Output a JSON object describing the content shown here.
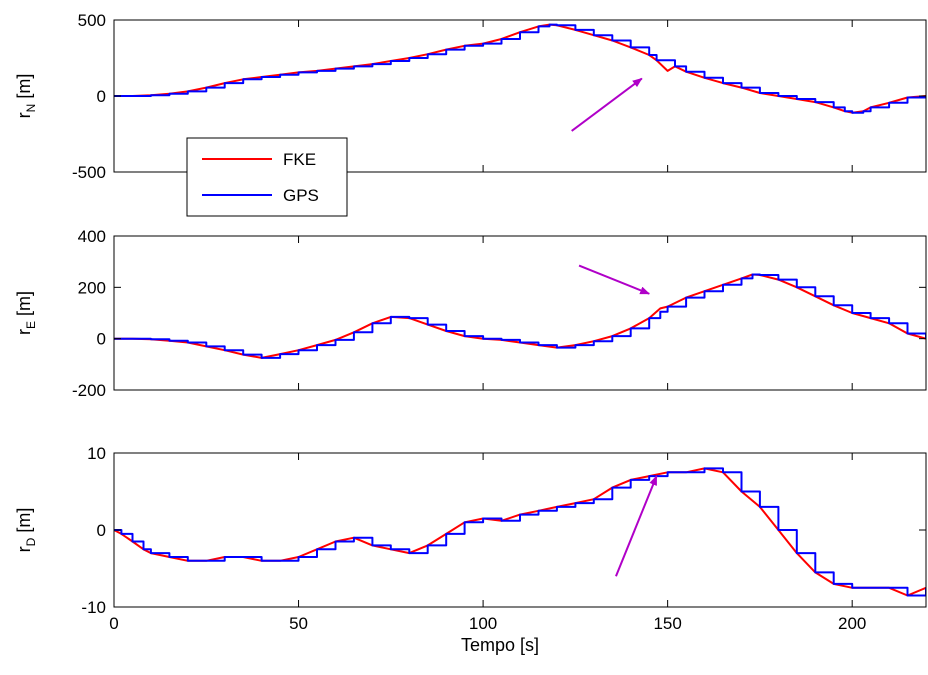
{
  "chart_data": [
    {
      "id": "rN",
      "type": "line",
      "ylabel": "r",
      "ylabel_subscript": "N",
      "ylabel_unit": "[m]",
      "xlim": [
        0,
        220
      ],
      "ylim": [
        -500,
        500
      ],
      "y_ticks": [
        "-500",
        "0",
        "500"
      ],
      "y_tick_values": [
        -500,
        0,
        500
      ],
      "x_ticks": [
        0,
        50,
        100,
        150,
        200
      ],
      "grid": false,
      "legend": {
        "placement": "bottom-left",
        "entries": [
          {
            "label": "FKE",
            "color": "#ff0000"
          },
          {
            "label": "GPS",
            "color": "#0000ff"
          }
        ]
      },
      "annotation": {
        "type": "arrow",
        "color": "#b000c8",
        "from": [
          124,
          -230
        ],
        "to": [
          143,
          115
        ]
      },
      "series": [
        {
          "name": "FKE",
          "color": "#ff0000",
          "step": false,
          "x": [
            0,
            5,
            10,
            15,
            20,
            25,
            30,
            35,
            40,
            45,
            50,
            55,
            60,
            65,
            70,
            75,
            80,
            85,
            90,
            95,
            100,
            105,
            110,
            115,
            118,
            120,
            125,
            130,
            135,
            140,
            145,
            147,
            150,
            152,
            155,
            160,
            165,
            170,
            175,
            180,
            185,
            190,
            195,
            198,
            200,
            203,
            205,
            210,
            215,
            220
          ],
          "y": [
            0,
            0,
            5,
            15,
            30,
            55,
            85,
            110,
            125,
            140,
            155,
            165,
            180,
            195,
            210,
            230,
            250,
            275,
            305,
            330,
            345,
            375,
            420,
            458,
            470,
            465,
            435,
            400,
            365,
            320,
            270,
            235,
            165,
            195,
            160,
            120,
            85,
            55,
            20,
            0,
            -20,
            -40,
            -75,
            -100,
            -110,
            -100,
            -75,
            -45,
            -10,
            0
          ]
        },
        {
          "name": "GPS",
          "color": "#0000ff",
          "step": true,
          "x": [
            0,
            5,
            10,
            15,
            20,
            25,
            30,
            35,
            40,
            45,
            50,
            55,
            60,
            65,
            70,
            75,
            80,
            85,
            90,
            95,
            100,
            105,
            110,
            115,
            118,
            120,
            125,
            130,
            135,
            140,
            145,
            147,
            150,
            152,
            155,
            160,
            165,
            170,
            175,
            180,
            185,
            190,
            195,
            198,
            200,
            203,
            205,
            210,
            215,
            220
          ],
          "y": [
            0,
            0,
            5,
            15,
            30,
            55,
            85,
            110,
            125,
            140,
            155,
            165,
            180,
            195,
            210,
            230,
            250,
            275,
            305,
            330,
            345,
            375,
            420,
            458,
            470,
            465,
            435,
            400,
            365,
            320,
            270,
            235,
            235,
            195,
            160,
            120,
            85,
            55,
            20,
            0,
            -20,
            -40,
            -75,
            -100,
            -110,
            -100,
            -75,
            -45,
            -10,
            0
          ]
        }
      ]
    },
    {
      "id": "rE",
      "type": "line",
      "ylabel": "r",
      "ylabel_subscript": "E",
      "ylabel_unit": "[m]",
      "xlim": [
        0,
        220
      ],
      "ylim": [
        -200,
        400
      ],
      "y_ticks": [
        "-200",
        "0",
        "200",
        "400"
      ],
      "y_tick_values": [
        -200,
        0,
        200,
        400
      ],
      "x_ticks": [
        0,
        50,
        100,
        150,
        200
      ],
      "grid": false,
      "annotation": {
        "type": "arrow",
        "color": "#b000c8",
        "from": [
          126,
          285
        ],
        "to": [
          145,
          175
        ]
      },
      "series": [
        {
          "name": "FKE",
          "color": "#ff0000",
          "step": false,
          "x": [
            0,
            5,
            10,
            15,
            20,
            25,
            30,
            35,
            40,
            45,
            50,
            55,
            60,
            65,
            70,
            75,
            80,
            85,
            90,
            95,
            100,
            105,
            110,
            115,
            120,
            125,
            130,
            135,
            140,
            145,
            148,
            150,
            155,
            160,
            165,
            170,
            173,
            175,
            180,
            185,
            190,
            195,
            200,
            205,
            210,
            215,
            220
          ],
          "y": [
            0,
            0,
            -2,
            -8,
            -15,
            -30,
            -45,
            -62,
            -75,
            -60,
            -45,
            -25,
            -5,
            25,
            60,
            85,
            80,
            55,
            30,
            10,
            0,
            -5,
            -15,
            -25,
            -35,
            -25,
            -10,
            10,
            40,
            80,
            118,
            125,
            160,
            185,
            210,
            235,
            250,
            248,
            230,
            200,
            165,
            130,
            100,
            80,
            60,
            20,
            0
          ]
        },
        {
          "name": "GPS",
          "color": "#0000ff",
          "step": true,
          "x": [
            0,
            5,
            10,
            15,
            20,
            25,
            30,
            35,
            40,
            45,
            50,
            55,
            60,
            65,
            70,
            75,
            80,
            85,
            90,
            95,
            100,
            105,
            110,
            115,
            120,
            125,
            130,
            135,
            140,
            145,
            148,
            150,
            155,
            160,
            165,
            170,
            173,
            175,
            180,
            185,
            190,
            195,
            200,
            205,
            210,
            215,
            220
          ],
          "y": [
            0,
            0,
            -2,
            -8,
            -15,
            -30,
            -45,
            -62,
            -75,
            -60,
            -45,
            -25,
            -5,
            25,
            60,
            85,
            80,
            55,
            30,
            10,
            0,
            -5,
            -15,
            -25,
            -35,
            -25,
            -10,
            10,
            40,
            80,
            105,
            125,
            160,
            185,
            210,
            235,
            250,
            248,
            230,
            200,
            165,
            130,
            100,
            80,
            60,
            20,
            0
          ]
        }
      ]
    },
    {
      "id": "rD",
      "type": "line",
      "ylabel": "r",
      "ylabel_subscript": "D",
      "ylabel_unit": "[m]",
      "xlabel": "Tempo [s]",
      "xlim": [
        0,
        220
      ],
      "ylim": [
        -10,
        10
      ],
      "y_ticks": [
        "-10",
        "0",
        "10"
      ],
      "y_tick_values": [
        -10,
        0,
        10
      ],
      "x_ticks": [
        0,
        50,
        100,
        150,
        200
      ],
      "x_tick_labels": [
        "0",
        "50",
        "100",
        "150",
        "200"
      ],
      "grid": false,
      "annotation": {
        "type": "arrow",
        "color": "#b000c8",
        "from": [
          136,
          -6
        ],
        "to": [
          147,
          7
        ]
      },
      "series": [
        {
          "name": "FKE",
          "color": "#ff0000",
          "step": false,
          "x": [
            0,
            2,
            5,
            8,
            10,
            15,
            20,
            25,
            30,
            35,
            40,
            45,
            50,
            55,
            60,
            65,
            70,
            75,
            80,
            85,
            90,
            95,
            100,
            105,
            110,
            115,
            120,
            125,
            130,
            135,
            140,
            145,
            150,
            155,
            160,
            165,
            170,
            175,
            180,
            185,
            190,
            195,
            200,
            205,
            210,
            215,
            220
          ],
          "y": [
            0,
            -0.5,
            -1.5,
            -2.5,
            -3,
            -3.5,
            -4,
            -4,
            -3.5,
            -3.5,
            -4,
            -4,
            -3.5,
            -2.5,
            -1.5,
            -1,
            -2,
            -2.5,
            -3,
            -2,
            -0.5,
            1,
            1.5,
            1.2,
            2,
            2.5,
            3,
            3.5,
            4,
            5.5,
            6.5,
            7,
            7.5,
            7.5,
            8,
            7.5,
            5,
            3,
            0,
            -3,
            -5.5,
            -7,
            -7.5,
            -7.5,
            -7.5,
            -8.5,
            -7.5
          ]
        },
        {
          "name": "GPS",
          "color": "#0000ff",
          "step": true,
          "x": [
            0,
            2,
            5,
            8,
            10,
            15,
            20,
            25,
            30,
            35,
            40,
            45,
            50,
            55,
            60,
            65,
            70,
            75,
            80,
            85,
            90,
            95,
            100,
            105,
            110,
            115,
            120,
            125,
            130,
            135,
            140,
            145,
            150,
            155,
            160,
            165,
            170,
            175,
            180,
            185,
            190,
            195,
            200,
            205,
            210,
            215,
            220
          ],
          "y": [
            0,
            -0.5,
            -1.5,
            -2.5,
            -3,
            -3.5,
            -4,
            -4,
            -3.5,
            -3.5,
            -4,
            -4,
            -3.5,
            -2.5,
            -1.5,
            -1,
            -2,
            -2.5,
            -3,
            -2,
            -0.5,
            1,
            1.5,
            1.2,
            2,
            2.5,
            3,
            3.5,
            4,
            5.5,
            6.5,
            7,
            7.5,
            7.5,
            8,
            7.5,
            5,
            3,
            0,
            -3,
            -5.5,
            -7,
            -7.5,
            -7.5,
            -7.5,
            -8.5,
            -7.5
          ]
        }
      ]
    }
  ]
}
